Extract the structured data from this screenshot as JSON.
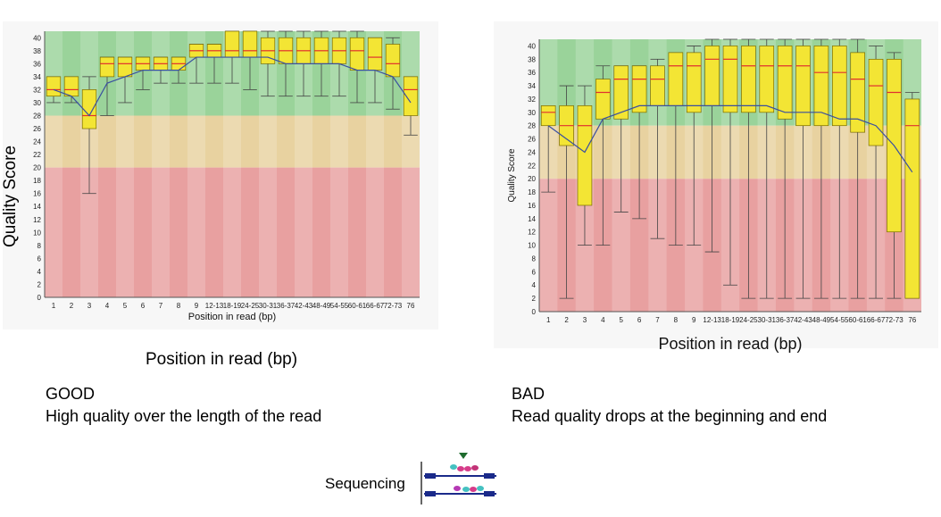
{
  "colors": {
    "good_zone": "#9ad39a",
    "mid_zone": "#e8d2a0",
    "bad_zone": "#e8a0a0",
    "box_fill": "#f3e534",
    "box_stroke": "#7a6b00",
    "median": "#e03030",
    "mean_line": "#3a4fa0",
    "whisker": "#444444"
  },
  "good": {
    "big_ylabel": "Quality Score",
    "xlabel": "Position in read (bp)",
    "caption": "Position in read (bp)",
    "heading": "GOOD",
    "description": "High quality over the length of the read"
  },
  "bad": {
    "inner_ylabel": "Quality Score",
    "inner_xlabel": "Position in read (bp)",
    "heading": "BAD",
    "description": "Read quality drops at the beginning and end"
  },
  "footer": {
    "label": "Sequencing",
    "icon": "sequencing-diagram-icon"
  },
  "chart_data": [
    {
      "type": "box",
      "ylim": [
        0,
        41
      ],
      "yticks": [
        0,
        2,
        4,
        6,
        8,
        10,
        12,
        14,
        16,
        18,
        20,
        22,
        24,
        26,
        28,
        30,
        32,
        34,
        36,
        38,
        40
      ],
      "categories": [
        "1",
        "2",
        "3",
        "4",
        "5",
        "6",
        "7",
        "8",
        "9",
        "12-13",
        "18-19",
        "24-25",
        "30-31",
        "36-37",
        "42-43",
        "48-49",
        "54-55",
        "60-61",
        "66-67",
        "72-73",
        "76"
      ],
      "bins": [
        {
          "q1": 31,
          "median": 32,
          "q3": 34,
          "lo": 30,
          "hi": 34,
          "mean": 32
        },
        {
          "q1": 31,
          "median": 32,
          "q3": 34,
          "lo": 30,
          "hi": 34,
          "mean": 31
        },
        {
          "q1": 26,
          "median": 28,
          "q3": 32,
          "lo": 16,
          "hi": 34,
          "mean": 28
        },
        {
          "q1": 34,
          "median": 36,
          "q3": 37,
          "lo": 28,
          "hi": 37,
          "mean": 33
        },
        {
          "q1": 34,
          "median": 36,
          "q3": 37,
          "lo": 30,
          "hi": 37,
          "mean": 34
        },
        {
          "q1": 35,
          "median": 36,
          "q3": 37,
          "lo": 32,
          "hi": 37,
          "mean": 35
        },
        {
          "q1": 35,
          "median": 36,
          "q3": 37,
          "lo": 33,
          "hi": 37,
          "mean": 35
        },
        {
          "q1": 35,
          "median": 36,
          "q3": 37,
          "lo": 33,
          "hi": 37,
          "mean": 35
        },
        {
          "q1": 37,
          "median": 38,
          "q3": 39,
          "lo": 33,
          "hi": 39,
          "mean": 37
        },
        {
          "q1": 37,
          "median": 38,
          "q3": 39,
          "lo": 33,
          "hi": 39,
          "mean": 37
        },
        {
          "q1": 37,
          "median": 38,
          "q3": 41,
          "lo": 33,
          "hi": 41,
          "mean": 37
        },
        {
          "q1": 37,
          "median": 38,
          "q3": 41,
          "lo": 32,
          "hi": 41,
          "mean": 37
        },
        {
          "q1": 36,
          "median": 38,
          "q3": 40,
          "lo": 31,
          "hi": 41,
          "mean": 37
        },
        {
          "q1": 36,
          "median": 38,
          "q3": 40,
          "lo": 31,
          "hi": 41,
          "mean": 36
        },
        {
          "q1": 36,
          "median": 38,
          "q3": 40,
          "lo": 31,
          "hi": 41,
          "mean": 36
        },
        {
          "q1": 36,
          "median": 38,
          "q3": 40,
          "lo": 31,
          "hi": 41,
          "mean": 36
        },
        {
          "q1": 36,
          "median": 38,
          "q3": 40,
          "lo": 31,
          "hi": 41,
          "mean": 36
        },
        {
          "q1": 35,
          "median": 38,
          "q3": 40,
          "lo": 30,
          "hi": 41,
          "mean": 35
        },
        {
          "q1": 35,
          "median": 37,
          "q3": 40,
          "lo": 30,
          "hi": 40,
          "mean": 35
        },
        {
          "q1": 34,
          "median": 36,
          "q3": 39,
          "lo": 29,
          "hi": 40,
          "mean": 34
        },
        {
          "q1": 28,
          "median": 32,
          "q3": 34,
          "lo": 25,
          "hi": 34,
          "mean": 30
        }
      ],
      "xlabel": "Position in read (bp)",
      "ylabel": "Quality Score"
    },
    {
      "type": "box",
      "ylim": [
        0,
        41
      ],
      "yticks": [
        0,
        2,
        4,
        6,
        8,
        10,
        12,
        14,
        16,
        18,
        20,
        22,
        24,
        26,
        28,
        30,
        32,
        34,
        36,
        38,
        40
      ],
      "categories": [
        "1",
        "2",
        "3",
        "4",
        "5",
        "6",
        "7",
        "8",
        "9",
        "12-13",
        "18-19",
        "24-25",
        "30-31",
        "36-37",
        "42-43",
        "48-49",
        "54-55",
        "60-61",
        "66-67",
        "72-73",
        "76"
      ],
      "bins": [
        {
          "q1": 28,
          "median": 30,
          "q3": 31,
          "lo": 18,
          "hi": 31,
          "mean": 28
        },
        {
          "q1": 25,
          "median": 28,
          "q3": 31,
          "lo": 2,
          "hi": 34,
          "mean": 26
        },
        {
          "q1": 16,
          "median": 28,
          "q3": 31,
          "lo": 10,
          "hi": 34,
          "mean": 24
        },
        {
          "q1": 29,
          "median": 33,
          "q3": 35,
          "lo": 10,
          "hi": 37,
          "mean": 29
        },
        {
          "q1": 29,
          "median": 35,
          "q3": 37,
          "lo": 15,
          "hi": 37,
          "mean": 30
        },
        {
          "q1": 30,
          "median": 35,
          "q3": 37,
          "lo": 14,
          "hi": 37,
          "mean": 31
        },
        {
          "q1": 31,
          "median": 35,
          "q3": 37,
          "lo": 11,
          "hi": 38,
          "mean": 31
        },
        {
          "q1": 31,
          "median": 37,
          "q3": 39,
          "lo": 10,
          "hi": 39,
          "mean": 31
        },
        {
          "q1": 30,
          "median": 37,
          "q3": 39,
          "lo": 10,
          "hi": 40,
          "mean": 31
        },
        {
          "q1": 31,
          "median": 38,
          "q3": 40,
          "lo": 9,
          "hi": 41,
          "mean": 31
        },
        {
          "q1": 30,
          "median": 38,
          "q3": 40,
          "lo": 4,
          "hi": 41,
          "mean": 31
        },
        {
          "q1": 30,
          "median": 37,
          "q3": 40,
          "lo": 2,
          "hi": 41,
          "mean": 31
        },
        {
          "q1": 30,
          "median": 37,
          "q3": 40,
          "lo": 2,
          "hi": 41,
          "mean": 31
        },
        {
          "q1": 29,
          "median": 37,
          "q3": 40,
          "lo": 2,
          "hi": 41,
          "mean": 30
        },
        {
          "q1": 28,
          "median": 37,
          "q3": 40,
          "lo": 2,
          "hi": 41,
          "mean": 30
        },
        {
          "q1": 28,
          "median": 36,
          "q3": 40,
          "lo": 2,
          "hi": 41,
          "mean": 30
        },
        {
          "q1": 28,
          "median": 36,
          "q3": 40,
          "lo": 2,
          "hi": 41,
          "mean": 29
        },
        {
          "q1": 27,
          "median": 35,
          "q3": 39,
          "lo": 2,
          "hi": 41,
          "mean": 29
        },
        {
          "q1": 25,
          "median": 34,
          "q3": 38,
          "lo": 2,
          "hi": 40,
          "mean": 28
        },
        {
          "q1": 12,
          "median": 33,
          "q3": 38,
          "lo": 2,
          "hi": 39,
          "mean": 25
        },
        {
          "q1": 2,
          "median": 28,
          "q3": 32,
          "lo": 2,
          "hi": 33,
          "mean": 21
        }
      ],
      "xlabel": "Position in read (bp)",
      "ylabel": "Quality Score"
    }
  ]
}
